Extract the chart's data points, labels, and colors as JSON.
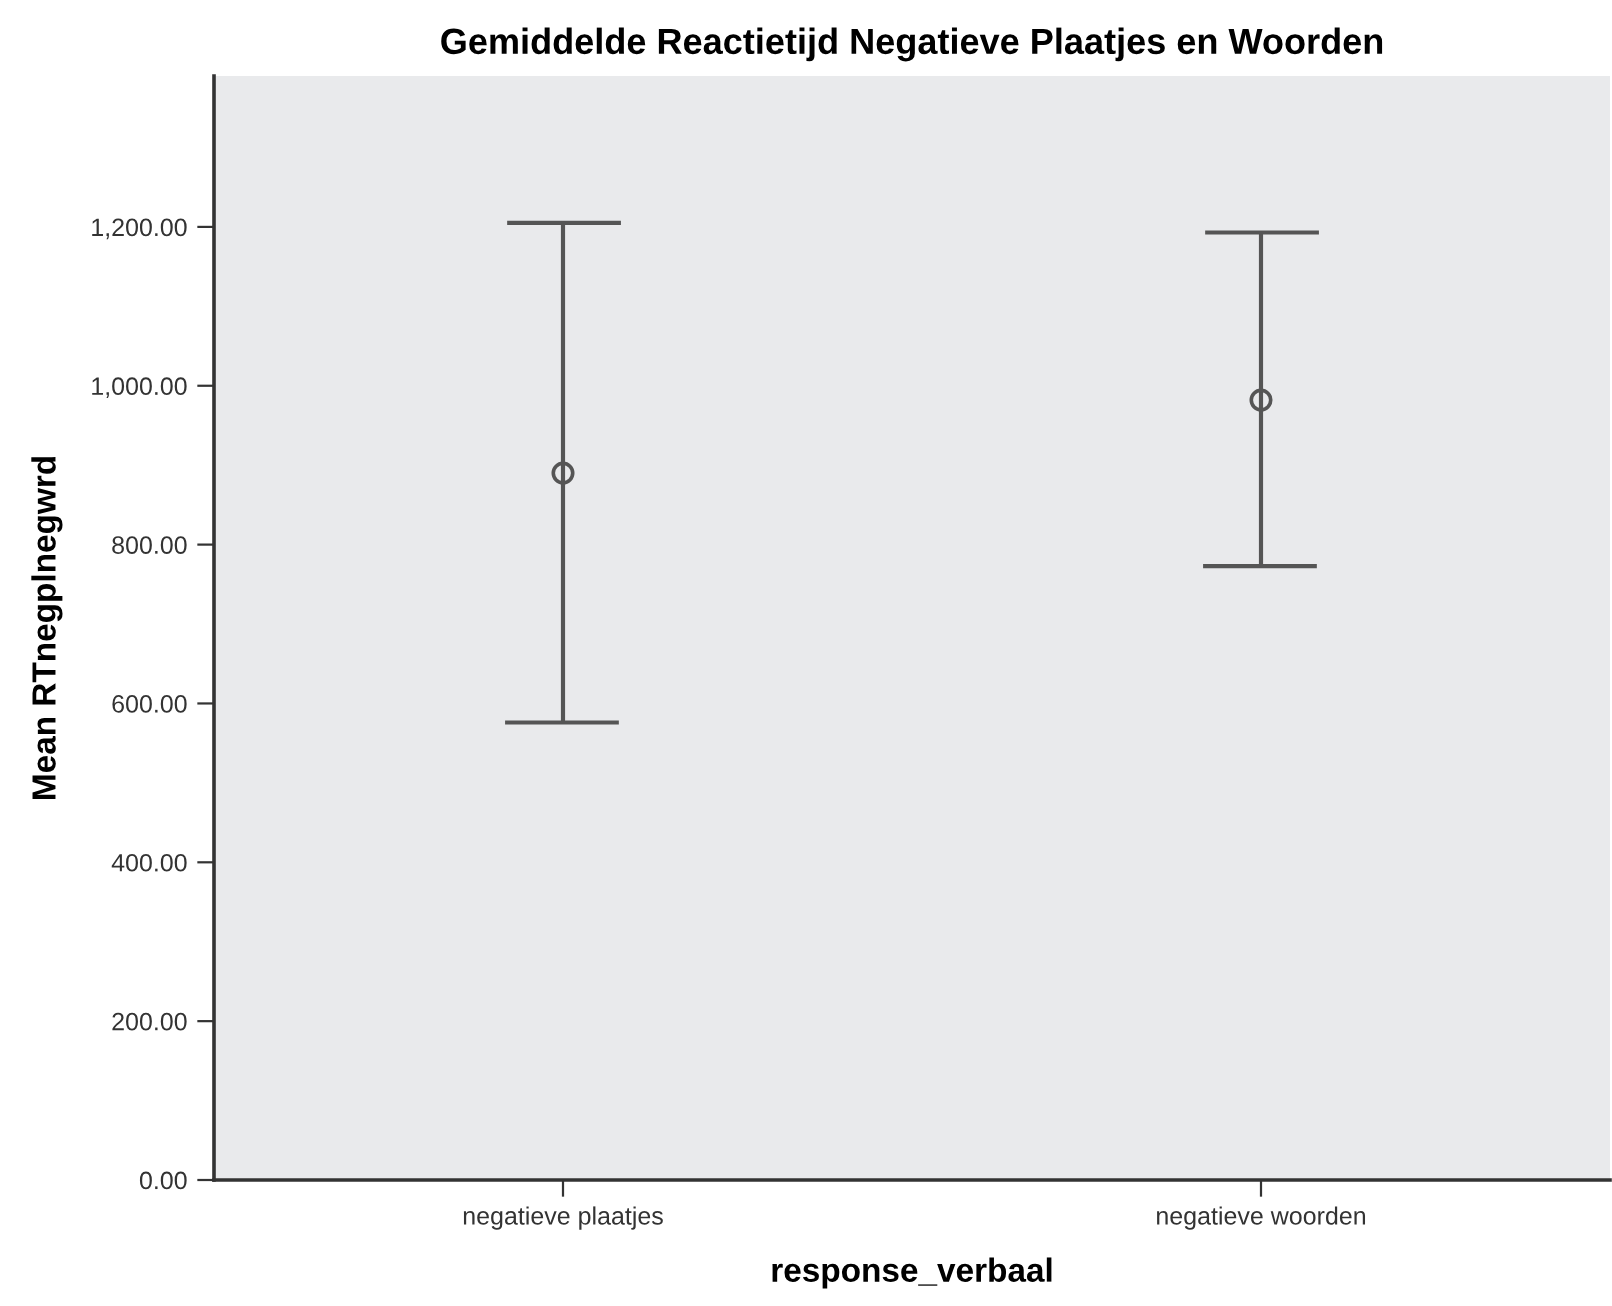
{
  "chart_data": {
    "type": "scatter",
    "title": "Gemiddelde Reactietijd Negatieve Plaatjes en Woorden",
    "xlabel": "response_verbaal",
    "ylabel": "Mean RTnegplnegwrd",
    "categories": [
      "negatieve plaatjes",
      "negatieve woorden"
    ],
    "series": [
      {
        "color": "#555555",
        "values": [
          890,
          982
        ],
        "errors": [
          [
            576,
            1205
          ],
          [
            773,
            1193
          ]
        ]
      }
    ],
    "marker": "circle",
    "grid": false,
    "legend": false,
    "ylim": [
      0,
      1390
    ],
    "yticks": [
      {
        "value": 0,
        "label": "0.00"
      },
      {
        "value": 200,
        "label": "200.00"
      },
      {
        "value": 400,
        "label": "400.00"
      },
      {
        "value": 600,
        "label": "600.00"
      },
      {
        "value": 800,
        "label": "800.00"
      },
      {
        "value": 1000,
        "label": "1,000.00"
      },
      {
        "value": 1200,
        "label": "1,200.00"
      }
    ]
  }
}
